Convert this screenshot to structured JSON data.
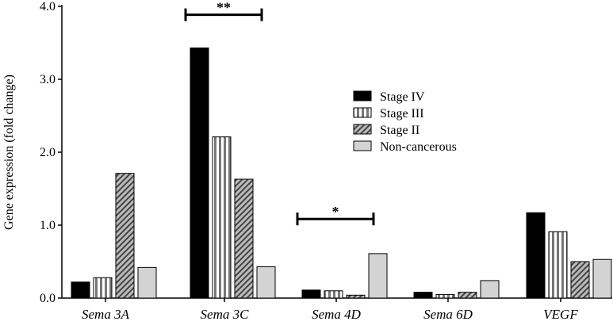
{
  "chart_data": {
    "type": "bar",
    "title": "",
    "xlabel": "",
    "ylabel": "Gene expression (fold change)",
    "ylim": [
      0,
      4.0
    ],
    "yticks": [
      "0.0",
      "1.0",
      "2.0",
      "3.0",
      "4.0"
    ],
    "categories": [
      "Sema 3A",
      "Sema 3C",
      "Sema 4D",
      "Sema 6D",
      "VEGF"
    ],
    "legend_position": "center-right",
    "grid": false,
    "series": [
      {
        "name": "Stage IV",
        "pattern": "solid-black",
        "color": "#000000",
        "values": [
          0.22,
          3.43,
          0.11,
          0.08,
          1.17
        ]
      },
      {
        "name": "Stage III",
        "pattern": "vertical-stripes",
        "color": "#888888",
        "values": [
          0.28,
          2.21,
          0.1,
          0.05,
          0.91
        ]
      },
      {
        "name": "Stage II",
        "pattern": "diagonal-hatch",
        "color": "#777777",
        "values": [
          1.71,
          1.63,
          0.04,
          0.08,
          0.5
        ]
      },
      {
        "name": "Non-cancerous",
        "pattern": "solid-light-gray",
        "color": "#d3d3d3",
        "values": [
          0.42,
          0.43,
          0.61,
          0.24,
          0.53
        ]
      }
    ],
    "annotations": [
      {
        "category": "Sema 3C",
        "text": "**",
        "y": 3.95
      },
      {
        "category": "Sema 4D",
        "text": "*",
        "y": 1.15
      }
    ]
  }
}
